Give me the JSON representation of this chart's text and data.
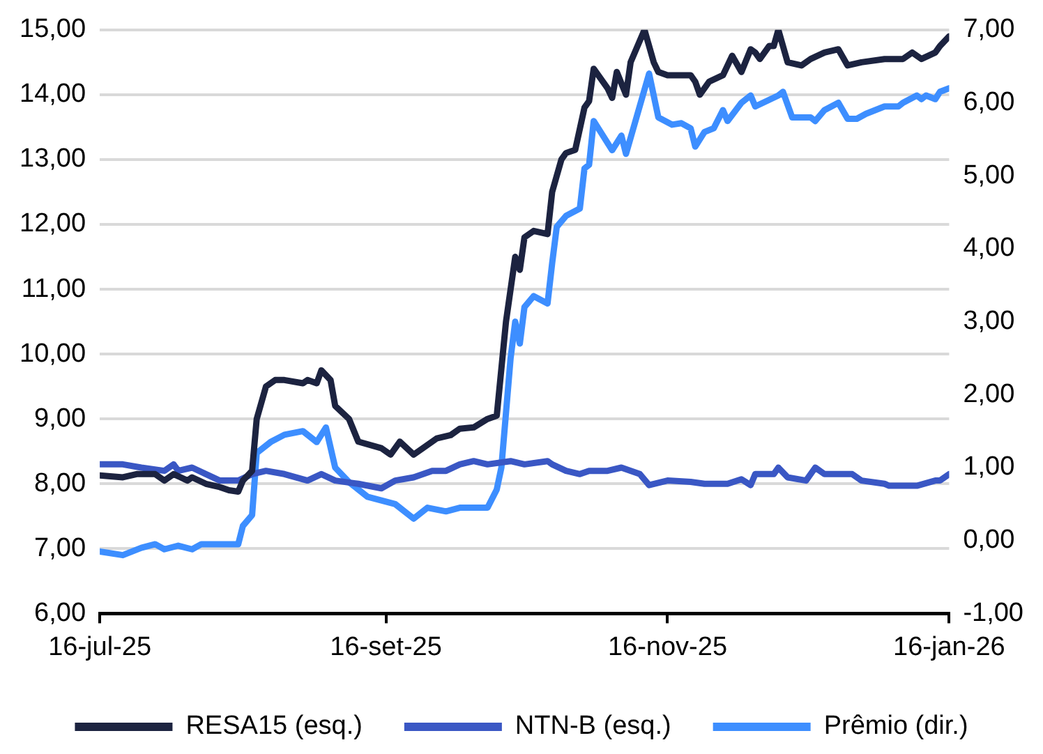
{
  "chart_data": {
    "type": "line",
    "xlim": [
      "2025-07-16",
      "2026-01-16"
    ],
    "xticks": [
      {
        "value": "2025-07-16",
        "label": "16-jul-25"
      },
      {
        "value": "2025-09-16",
        "label": "16-set-25"
      },
      {
        "value": "2025-11-16",
        "label": "16-nov-25"
      },
      {
        "value": "2026-01-16",
        "label": "16-jan-26"
      }
    ],
    "ylim": [
      6,
      15
    ],
    "yticks": [
      {
        "value": 6,
        "label": "6,00"
      },
      {
        "value": 7,
        "label": "7,00"
      },
      {
        "value": 8,
        "label": "8,00"
      },
      {
        "value": 9,
        "label": "9,00"
      },
      {
        "value": 10,
        "label": "10,00"
      },
      {
        "value": 11,
        "label": "11,00"
      },
      {
        "value": 12,
        "label": "12,00"
      },
      {
        "value": 13,
        "label": "13,00"
      },
      {
        "value": 14,
        "label": "14,00"
      },
      {
        "value": 15,
        "label": "15,00"
      }
    ],
    "y2lim": [
      -1,
      7
    ],
    "y2ticks": [
      {
        "value": -1,
        "label": "-1,00"
      },
      {
        "value": 0,
        "label": "0,00"
      },
      {
        "value": 1,
        "label": "1,00"
      },
      {
        "value": 2,
        "label": "2,00"
      },
      {
        "value": 3,
        "label": "3,00"
      },
      {
        "value": 4,
        "label": "4,00"
      },
      {
        "value": 5,
        "label": "5,00"
      },
      {
        "value": 6,
        "label": "6,00"
      },
      {
        "value": 7,
        "label": "7,00"
      }
    ],
    "grid": "y",
    "legend": "bottom",
    "marker": "none",
    "line_style": "solid",
    "series": [
      {
        "name": "RESA15 (esq.)",
        "color": "#1c2340",
        "x": [
          "2025-07-16",
          "2025-07-21",
          "2025-07-24",
          "2025-07-28",
          "2025-07-30",
          "2025-08-01",
          "2025-08-04",
          "2025-08-05",
          "2025-08-08",
          "2025-08-11",
          "2025-08-13",
          "2025-08-15",
          "2025-08-16",
          "2025-08-18",
          "2025-08-19",
          "2025-08-21",
          "2025-08-23",
          "2025-08-25",
          "2025-08-29",
          "2025-08-30",
          "2025-09-01",
          "2025-09-02",
          "2025-09-04",
          "2025-09-05",
          "2025-09-08",
          "2025-09-10",
          "2025-09-15",
          "2025-09-17",
          "2025-09-19",
          "2025-09-22",
          "2025-09-24",
          "2025-09-27",
          "2025-09-30",
          "2025-10-02",
          "2025-10-05",
          "2025-10-08",
          "2025-10-10",
          "2025-10-12",
          "2025-10-14",
          "2025-10-15",
          "2025-10-16",
          "2025-10-18",
          "2025-10-21",
          "2025-10-22",
          "2025-10-24",
          "2025-10-25",
          "2025-10-27",
          "2025-10-29",
          "2025-10-30",
          "2025-10-31",
          "2025-11-03",
          "2025-11-04",
          "2025-11-05",
          "2025-11-07",
          "2025-11-08",
          "2025-11-11",
          "2025-11-13",
          "2025-11-14",
          "2025-11-16",
          "2025-11-21",
          "2025-11-22",
          "2025-11-23",
          "2025-11-25",
          "2025-11-28",
          "2025-11-30",
          "2025-12-02",
          "2025-12-04",
          "2025-12-05",
          "2025-12-06",
          "2025-12-08",
          "2025-12-09",
          "2025-12-10",
          "2025-12-12",
          "2025-12-15",
          "2025-12-17",
          "2025-12-20",
          "2025-12-23",
          "2025-12-25",
          "2025-12-28",
          "2026-01-02",
          "2026-01-06",
          "2026-01-08",
          "2026-01-10",
          "2026-01-13",
          "2026-01-14",
          "2026-01-16"
        ],
        "values": [
          8.13,
          8.1,
          8.15,
          8.15,
          8.05,
          8.15,
          8.05,
          8.1,
          8.0,
          7.95,
          7.9,
          7.88,
          8.05,
          8.2,
          9.0,
          9.5,
          9.6,
          9.6,
          9.55,
          9.6,
          9.55,
          9.75,
          9.6,
          9.2,
          9.0,
          8.65,
          8.55,
          8.45,
          8.65,
          8.45,
          8.55,
          8.7,
          8.75,
          8.85,
          8.87,
          9.0,
          9.05,
          10.5,
          11.5,
          11.3,
          11.8,
          11.9,
          11.85,
          12.5,
          13.0,
          13.1,
          13.15,
          13.8,
          13.9,
          14.4,
          14.1,
          13.95,
          14.35,
          14.0,
          14.5,
          15.0,
          14.5,
          14.35,
          14.3,
          14.3,
          14.2,
          14.0,
          14.2,
          14.3,
          14.6,
          14.35,
          14.7,
          14.65,
          14.55,
          14.75,
          14.75,
          15.0,
          14.5,
          14.45,
          14.55,
          14.65,
          14.7,
          14.45,
          14.5,
          14.55,
          14.55,
          14.65,
          14.55,
          14.65,
          14.75,
          14.9
        ]
      },
      {
        "name": "NTN-B (esq.)",
        "color": "#3a57c4",
        "x": [
          "2025-07-16",
          "2025-07-21",
          "2025-07-25",
          "2025-07-30",
          "2025-08-01",
          "2025-08-02",
          "2025-08-05",
          "2025-08-08",
          "2025-08-11",
          "2025-08-15",
          "2025-08-18",
          "2025-08-21",
          "2025-08-25",
          "2025-08-30",
          "2025-09-02",
          "2025-09-05",
          "2025-09-10",
          "2025-09-15",
          "2025-09-18",
          "2025-09-22",
          "2025-09-26",
          "2025-09-29",
          "2025-10-02",
          "2025-10-05",
          "2025-10-08",
          "2025-10-13",
          "2025-10-16",
          "2025-10-21",
          "2025-10-22",
          "2025-10-25",
          "2025-10-28",
          "2025-10-30",
          "2025-11-03",
          "2025-11-06",
          "2025-11-10",
          "2025-11-12",
          "2025-11-16",
          "2025-11-21",
          "2025-11-24",
          "2025-11-29",
          "2025-12-02",
          "2025-12-04",
          "2025-12-05",
          "2025-12-09",
          "2025-12-10",
          "2025-12-12",
          "2025-12-16",
          "2025-12-18",
          "2025-12-20",
          "2025-12-26",
          "2025-12-28",
          "2026-01-02",
          "2026-01-03",
          "2026-01-09",
          "2026-01-13",
          "2026-01-14",
          "2026-01-16"
        ],
        "values": [
          8.3,
          8.3,
          8.25,
          8.2,
          8.3,
          8.2,
          8.25,
          8.15,
          8.05,
          8.05,
          8.15,
          8.2,
          8.15,
          8.05,
          8.15,
          8.05,
          8.0,
          7.93,
          8.05,
          8.1,
          8.2,
          8.2,
          8.3,
          8.35,
          8.3,
          8.35,
          8.3,
          8.35,
          8.3,
          8.2,
          8.15,
          8.2,
          8.2,
          8.25,
          8.15,
          7.98,
          8.05,
          8.03,
          8.0,
          8.0,
          8.07,
          7.98,
          8.15,
          8.15,
          8.25,
          8.1,
          8.05,
          8.25,
          8.15,
          8.15,
          8.05,
          8.0,
          7.97,
          7.97,
          8.05,
          8.05,
          8.15
        ]
      },
      {
        "name": "Prêmio (dir.)",
        "color": "#3d8eff",
        "axis": "y2",
        "x": [
          "2025-07-16",
          "2025-07-21",
          "2025-07-25",
          "2025-07-28",
          "2025-07-30",
          "2025-08-02",
          "2025-08-05",
          "2025-08-07",
          "2025-08-15",
          "2025-08-16",
          "2025-08-18",
          "2025-08-19",
          "2025-08-22",
          "2025-08-25",
          "2025-08-29",
          "2025-09-01",
          "2025-09-03",
          "2025-09-05",
          "2025-09-08",
          "2025-09-12",
          "2025-09-15",
          "2025-09-18",
          "2025-09-22",
          "2025-09-25",
          "2025-09-29",
          "2025-10-02",
          "2025-10-08",
          "2025-10-10",
          "2025-10-11",
          "2025-10-13",
          "2025-10-14",
          "2025-10-15",
          "2025-10-16",
          "2025-10-18",
          "2025-10-21",
          "2025-10-22",
          "2025-10-23",
          "2025-10-25",
          "2025-10-28",
          "2025-10-29",
          "2025-10-30",
          "2025-10-31",
          "2025-11-04",
          "2025-11-06",
          "2025-11-07",
          "2025-11-12",
          "2025-11-14",
          "2025-11-17",
          "2025-11-19",
          "2025-11-21",
          "2025-11-22",
          "2025-11-24",
          "2025-11-26",
          "2025-11-28",
          "2025-11-29",
          "2025-12-02",
          "2025-12-04",
          "2025-12-05",
          "2025-12-10",
          "2025-12-11",
          "2025-12-13",
          "2025-12-17",
          "2025-12-18",
          "2025-12-20",
          "2025-12-23",
          "2025-12-25",
          "2025-12-27",
          "2025-12-29",
          "2026-01-02",
          "2026-01-05",
          "2026-01-06",
          "2026-01-09",
          "2026-01-10",
          "2026-01-11",
          "2026-01-13",
          "2026-01-14",
          "2026-01-16"
        ],
        "values": [
          -0.15,
          -0.2,
          -0.1,
          -0.05,
          -0.12,
          -0.07,
          -0.12,
          -0.05,
          -0.05,
          0.2,
          0.35,
          1.2,
          1.35,
          1.45,
          1.5,
          1.35,
          1.55,
          1.0,
          0.8,
          0.6,
          0.55,
          0.5,
          0.3,
          0.45,
          0.4,
          0.45,
          0.45,
          0.7,
          1.0,
          2.5,
          3.0,
          2.7,
          3.2,
          3.35,
          3.25,
          3.8,
          4.3,
          4.45,
          4.55,
          5.1,
          5.15,
          5.75,
          5.35,
          5.55,
          5.3,
          6.4,
          5.8,
          5.7,
          5.72,
          5.65,
          5.4,
          5.6,
          5.65,
          5.9,
          5.75,
          6.0,
          6.1,
          5.95,
          6.1,
          6.15,
          5.8,
          5.8,
          5.75,
          5.9,
          6.0,
          5.78,
          5.78,
          5.85,
          5.95,
          5.95,
          6.0,
          6.1,
          6.05,
          6.1,
          6.05,
          6.15,
          6.2
        ]
      }
    ]
  }
}
